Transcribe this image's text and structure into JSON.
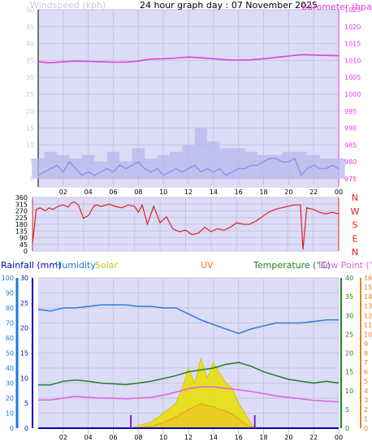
{
  "title": "24 hour graph day : 07 November 2025",
  "chart_data": [
    {
      "type": "line",
      "panel": "wind-barometer",
      "left_axis_label": "Windspeed (kph)",
      "right_axis_label": "Barometer (hpa)",
      "left_ticks": [
        "50",
        "45",
        "40",
        "35",
        "30",
        "25",
        "20",
        "15",
        "10",
        "5",
        "0"
      ],
      "right_ticks": [
        "1025",
        "1020",
        "1015",
        "1010",
        "1005",
        "1000",
        "995",
        "990",
        "985",
        "980",
        "975"
      ],
      "left_ylim": [
        0,
        50
      ],
      "right_ylim": [
        975,
        1025
      ],
      "x_ticks": [
        "02",
        "04",
        "06",
        "08",
        "10",
        "12",
        "14",
        "16",
        "18",
        "20",
        "22",
        "00"
      ],
      "grid": true,
      "series": [
        {
          "name": "Barometer",
          "axis": "right",
          "color": "#e040e0",
          "x": [
            0,
            1,
            2,
            3,
            4,
            5,
            6,
            7,
            8,
            9,
            10,
            11,
            12,
            13,
            14,
            15,
            16,
            17,
            18,
            19,
            20,
            21,
            22,
            23,
            24
          ],
          "values": [
            1009.6,
            1009.3,
            1009.6,
            1009.8,
            1009.7,
            1009.6,
            1009.5,
            1009.5,
            1009.8,
            1010.4,
            1010.5,
            1010.7,
            1011.0,
            1010.8,
            1010.5,
            1010.2,
            1010.1,
            1010.2,
            1010.5,
            1010.9,
            1011.3,
            1011.7,
            1011.6,
            1011.5,
            1011.4
          ]
        },
        {
          "name": "Windspeed",
          "axis": "left",
          "color": "#2a2ad0",
          "x": [
            0,
            0.5,
            1,
            1.5,
            2,
            2.5,
            3,
            3.5,
            4,
            4.5,
            5,
            5.5,
            6,
            6.5,
            7,
            7.5,
            8,
            8.5,
            9,
            9.5,
            10,
            10.5,
            11,
            11.5,
            12,
            12.5,
            13,
            13.5,
            14,
            14.5,
            15,
            15.5,
            16,
            16.5,
            17,
            17.5,
            18,
            18.5,
            19,
            19.5,
            20,
            20.5,
            21,
            21.5,
            22,
            22.5,
            23,
            23.5,
            24
          ],
          "values": [
            1,
            2,
            3,
            4,
            2,
            5,
            3,
            1,
            2,
            1,
            2,
            3,
            2,
            4,
            3,
            4,
            5,
            3,
            2,
            3,
            1,
            2,
            3,
            2,
            3,
            4,
            2,
            3,
            2,
            3,
            1,
            2,
            3,
            3,
            4,
            4,
            5,
            6,
            6,
            5,
            5,
            6,
            1,
            3,
            4,
            3,
            3,
            4,
            3
          ]
        },
        {
          "name": "Gust",
          "axis": "left",
          "color": "#b8b8ee",
          "x": [
            0,
            1,
            2,
            3,
            4,
            5,
            6,
            7,
            8,
            9,
            10,
            11,
            12,
            13,
            14,
            15,
            16,
            17,
            18,
            19,
            20,
            21,
            22,
            23,
            24
          ],
          "values": [
            6,
            8,
            7,
            6,
            7,
            5,
            8,
            5,
            9,
            6,
            7,
            8,
            10,
            15,
            11,
            9,
            9,
            8,
            7,
            7,
            8,
            8,
            7,
            6,
            6
          ]
        }
      ]
    },
    {
      "type": "line",
      "panel": "wind-direction",
      "left_ticks": [
        "360",
        "315",
        "270",
        "225",
        "180",
        "135",
        "90",
        "45",
        "0"
      ],
      "right_labels": [
        "N",
        "W",
        "S",
        "E",
        "N"
      ],
      "ylim": [
        0,
        360
      ],
      "x_ticks": [
        "02",
        "04",
        "06",
        "08",
        "10",
        "12",
        "14",
        "16",
        "18",
        "20",
        "22",
        "00"
      ],
      "series": [
        {
          "name": "Wind Direction",
          "color": "#e02020",
          "x": [
            0,
            0.3,
            0.6,
            1,
            1.3,
            1.6,
            2,
            2.4,
            2.8,
            3,
            3.3,
            3.6,
            4,
            4.4,
            4.8,
            5,
            5.4,
            6,
            6.5,
            7,
            7.5,
            8,
            8.3,
            8.6,
            9,
            9.5,
            10,
            10.5,
            11,
            11.5,
            12,
            12.5,
            13,
            13.5,
            14,
            14.5,
            15,
            15.5,
            16,
            16.5,
            17,
            17.5,
            18,
            18.5,
            19,
            19.5,
            20,
            20.5,
            21,
            21.2,
            21.5,
            22,
            22.5,
            23,
            23.5,
            24
          ],
          "values": [
            50,
            280,
            290,
            270,
            290,
            280,
            300,
            310,
            295,
            320,
            330,
            310,
            220,
            240,
            300,
            310,
            300,
            315,
            300,
            290,
            310,
            300,
            260,
            310,
            180,
            300,
            190,
            230,
            150,
            130,
            140,
            110,
            120,
            160,
            130,
            150,
            140,
            160,
            190,
            180,
            180,
            200,
            230,
            260,
            280,
            290,
            300,
            310,
            310,
            10,
            290,
            280,
            260,
            250,
            260,
            250
          ]
        }
      ]
    },
    {
      "type": "line",
      "panel": "rain-humidity-solar-uv-temperature",
      "series_labels": [
        "Rainfall (mm)",
        "Humidity",
        "Solar",
        "UV",
        "Temperature (°C)",
        "Dew Point (°C)"
      ],
      "label_colors": [
        "#0000c0",
        "#1a7ad0",
        "#c8c820",
        "#e08020",
        "#208020",
        "#e060e0"
      ],
      "rain_ticks": [
        "0",
        "1",
        "2",
        "3",
        "4",
        "5",
        "6",
        "7",
        "8",
        "9",
        "10"
      ],
      "humidity_ticks": [
        "100",
        "90",
        "80",
        "70",
        "60",
        "50",
        "40",
        "30",
        "20",
        "10",
        "0"
      ],
      "solar_ticks": [
        "30",
        "25",
        "20",
        "15",
        "10",
        "5",
        "0"
      ],
      "temp_ticks": [
        "40",
        "35",
        "30",
        "25",
        "20",
        "15",
        "10",
        "5",
        "0"
      ],
      "uv_ticks": [
        "16",
        "15",
        "14",
        "13",
        "12",
        "11",
        "10",
        "9",
        "8",
        "7",
        "6",
        "5",
        "4",
        "3",
        "2",
        "1",
        "0"
      ],
      "x_ticks": [
        "02",
        "04",
        "06",
        "08",
        "10",
        "12",
        "14",
        "16",
        "18",
        "20",
        "22",
        "00"
      ],
      "sunrise_hour": 7.4,
      "sunset_hour": 17.3,
      "series": [
        {
          "name": "Humidity",
          "axis": "humidity",
          "color": "#2a7ae0",
          "x": [
            0,
            1,
            2,
            3,
            4,
            5,
            6,
            7,
            8,
            9,
            10,
            11,
            12,
            13,
            14,
            15,
            16,
            17,
            18,
            19,
            20,
            21,
            22,
            23,
            24
          ],
          "values": [
            79,
            78,
            80,
            80,
            81,
            82,
            82,
            82,
            81,
            81,
            80,
            80,
            76,
            72,
            69,
            66,
            63,
            66,
            68,
            70,
            70,
            70,
            71,
            72,
            72
          ]
        },
        {
          "name": "Temperature",
          "axis": "temp",
          "color": "#208020",
          "x": [
            0,
            1,
            2,
            3,
            4,
            5,
            6,
            7,
            8,
            9,
            10,
            11,
            12,
            13,
            14,
            15,
            16,
            17,
            18,
            19,
            20,
            21,
            22,
            23,
            24
          ],
          "values": [
            11.5,
            11.5,
            12.5,
            12.8,
            12.5,
            12.0,
            11.8,
            11.6,
            12.0,
            12.5,
            13.2,
            14.0,
            15.0,
            15.5,
            16.0,
            17.0,
            17.5,
            16.5,
            15.0,
            14.0,
            13.0,
            12.5,
            12.0,
            12.5,
            12.0
          ]
        },
        {
          "name": "Dew Point",
          "axis": "temp",
          "color": "#e060e0",
          "x": [
            0,
            1,
            2,
            3,
            4,
            5,
            6,
            7,
            8,
            9,
            10,
            11,
            12,
            13,
            14,
            15,
            16,
            17,
            18,
            19,
            20,
            21,
            22,
            23,
            24
          ],
          "values": [
            7.5,
            7.5,
            8.0,
            8.5,
            8.2,
            8.0,
            8.0,
            7.8,
            8.0,
            8.2,
            8.8,
            9.6,
            10.5,
            11.0,
            11.0,
            10.6,
            10.2,
            9.8,
            9.2,
            8.6,
            8.2,
            7.8,
            7.4,
            7.2,
            7.0
          ]
        },
        {
          "name": "Solar",
          "axis": "solar",
          "color": "#e8e000",
          "x": [
            7.4,
            8,
            9,
            10,
            11,
            11.5,
            12,
            12.5,
            13,
            13.5,
            14,
            14.5,
            15,
            15.5,
            16,
            16.5,
            17,
            17.3
          ],
          "values": [
            0,
            0.5,
            1.2,
            3,
            5,
            8,
            12,
            9,
            14,
            10,
            13,
            11,
            9,
            8,
            5,
            3,
            1,
            0
          ]
        },
        {
          "name": "UV",
          "axis": "uv",
          "color": "#e08020",
          "x": [
            7.4,
            9,
            10,
            11,
            12,
            12.5,
            13,
            13.5,
            14,
            14.5,
            15,
            15.5,
            16,
            16.5,
            17.3
          ],
          "values": [
            0,
            0.2,
            0.6,
            1.2,
            2.0,
            2.3,
            2.6,
            2.4,
            2.3,
            2.0,
            1.8,
            1.5,
            1.0,
            0.5,
            0
          ]
        },
        {
          "name": "Rainfall",
          "axis": "rain",
          "color": "#0000c0",
          "x": [
            0,
            24
          ],
          "values": [
            0,
            0
          ]
        }
      ]
    }
  ]
}
